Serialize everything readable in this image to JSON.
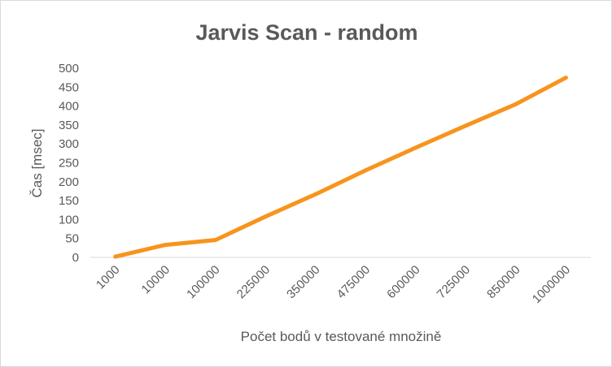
{
  "chart_data": {
    "type": "line",
    "title": "Jarvis Scan - random",
    "xlabel": "Počet bodů v testované  množině",
    "ylabel": "Čas [msec]",
    "categories": [
      "1000",
      "10000",
      "100000",
      "225000",
      "350000",
      "475000",
      "600000",
      "725000",
      "850000",
      "1000000"
    ],
    "series": [
      {
        "values": [
          2,
          33,
          46,
          108,
          167,
          230,
          290,
          348,
          405,
          475
        ]
      }
    ],
    "ylim": [
      0,
      500
    ],
    "yticks": [
      "0",
      "50",
      "100",
      "150",
      "200",
      "250",
      "300",
      "350",
      "400",
      "450",
      "500"
    ],
    "grid": false,
    "legend": "none",
    "colors": {
      "line": "#f7941d",
      "text": "#595959",
      "axis": "#d9d9d9"
    }
  }
}
